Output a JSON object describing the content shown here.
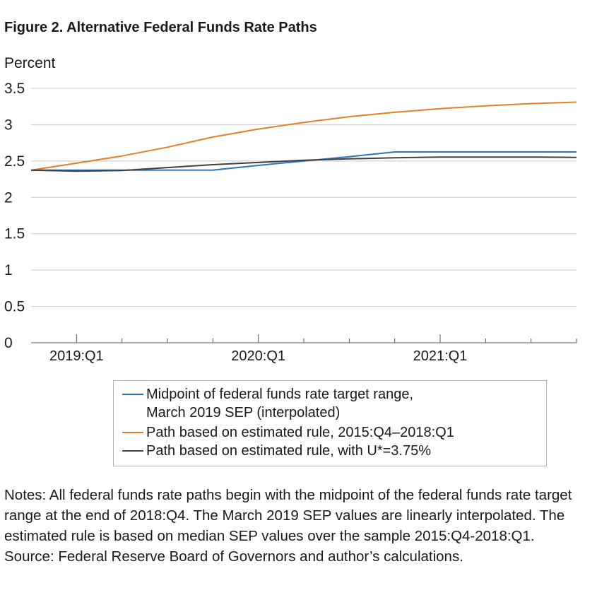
{
  "figure": {
    "title": "Figure 2. Alternative Federal Funds Rate Paths",
    "ylabel": "Percent"
  },
  "chart_data": {
    "type": "line",
    "title": "Figure 2. Alternative Federal Funds Rate Paths",
    "ylabel": "Percent",
    "xlabel": "",
    "ylim": [
      0,
      3.5
    ],
    "yticks": [
      "0",
      "0.5",
      "1",
      "1.5",
      "2",
      "2.5",
      "3",
      "3.5"
    ],
    "grid": true,
    "legend_position": "bottom",
    "x": [
      "2018:Q4",
      "2019:Q1",
      "2019:Q2",
      "2019:Q3",
      "2019:Q4",
      "2020:Q1",
      "2020:Q2",
      "2020:Q3",
      "2020:Q4",
      "2021:Q1",
      "2021:Q2",
      "2021:Q3",
      "2021:Q4"
    ],
    "xtick_labels": [
      "2019:Q1",
      "2020:Q1",
      "2021:Q1"
    ],
    "series": [
      {
        "name": "Midpoint of federal funds rate target range,\nMarch 2019 SEP (interpolated)",
        "color": "#2e75b6",
        "values": [
          2.375,
          2.375,
          2.375,
          2.375,
          2.375,
          2.44,
          2.5,
          2.56,
          2.625,
          2.625,
          2.625,
          2.625,
          2.625
        ]
      },
      {
        "name": "Path based on estimated rule, 2015:Q4–2018:Q1",
        "color": "#e67e22",
        "values": [
          2.375,
          2.47,
          2.57,
          2.69,
          2.83,
          2.94,
          3.03,
          3.11,
          3.17,
          3.22,
          3.26,
          3.29,
          3.31
        ]
      },
      {
        "name": "Path based on estimated rule, with U*=3.75%",
        "color": "#404040",
        "values": [
          2.375,
          2.36,
          2.37,
          2.41,
          2.45,
          2.48,
          2.51,
          2.53,
          2.545,
          2.555,
          2.555,
          2.555,
          2.55
        ]
      }
    ]
  },
  "notes": {
    "text": "Notes: All federal funds rate paths begin with the midpoint of the federal funds rate target range at the end of 2018:Q4. The March 2019 SEP values are linearly interpolated. The estimated rule is based on median SEP values over the sample 2015:Q4-2018:Q1.",
    "source": "Source: Federal Reserve Board of Governors and author’s calculations."
  }
}
